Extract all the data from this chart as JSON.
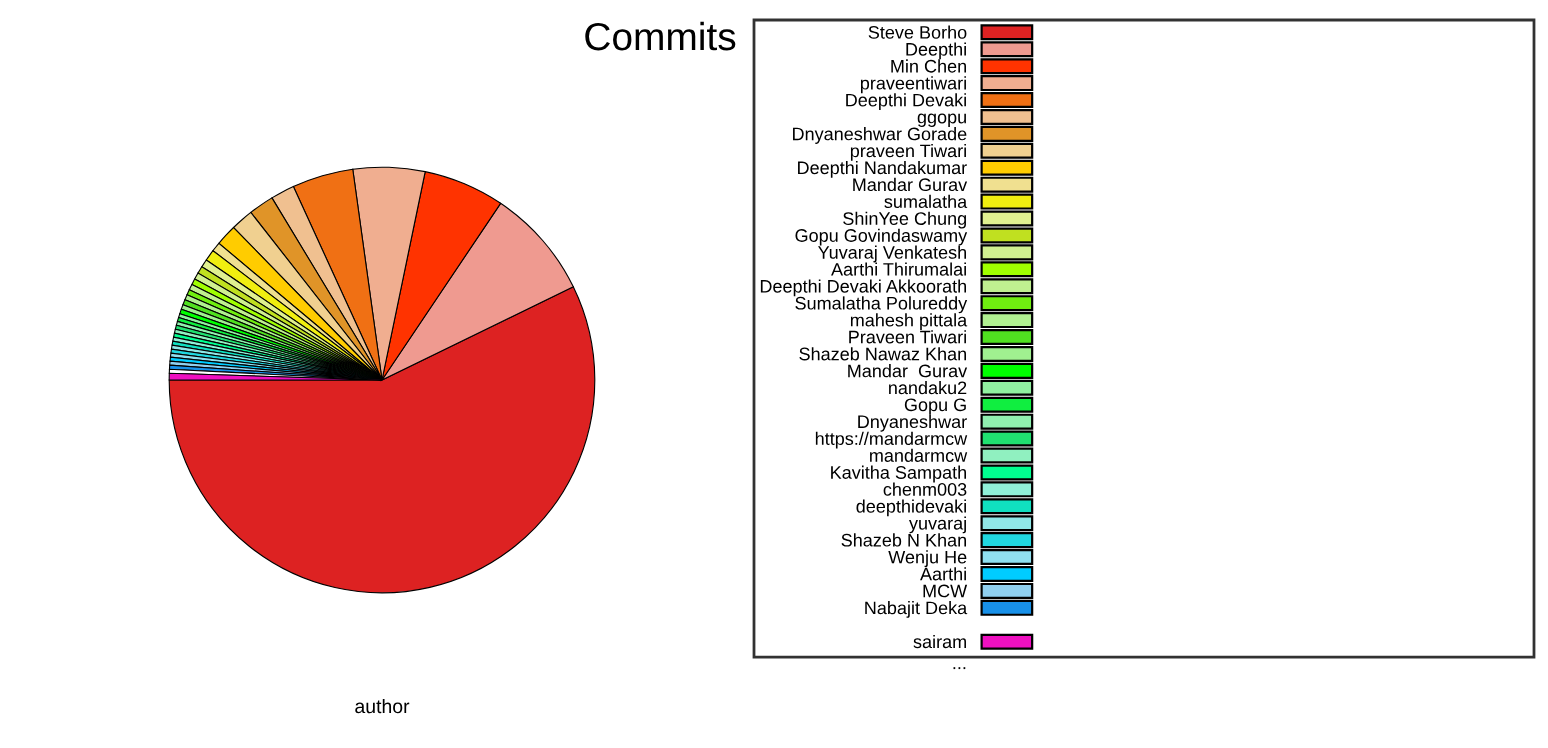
{
  "chart_data": {
    "type": "pie",
    "title": "Commits",
    "xlabel": "author",
    "legend": "right",
    "categories": [
      "Steve Borho",
      "Deepthi",
      "Min Chen",
      "praveentiwari",
      "Deepthi Devaki",
      "ggopu",
      "Dnyaneshwar Gorade",
      "praveen Tiwari",
      "Deepthi Nandakumar",
      "Mandar Gurav",
      "sumalatha",
      "ShinYee Chung",
      "Gopu Govindaswamy",
      "Yuvaraj Venkatesh",
      "Aarthi Thirumalai",
      "Deepthi Devaki Akkoorath",
      "Sumalatha Polureddy",
      "mahesh pittala",
      "Praveen Tiwari",
      "Shazeb Nawaz Khan",
      "Mandar  Gurav",
      "nandaku2",
      "Gopu G",
      "Dnyaneshwar",
      "https://mandarmcw",
      "mandarmcw",
      "Kavitha Sampath",
      "chenm003",
      "deepthidevaki",
      "yuvaraj",
      "Shazeb N Khan",
      "Wenju He",
      "Aarthi",
      "MCW",
      "Nabajit Deka",
      null,
      "sairam"
    ],
    "annotations": [
      "..."
    ],
    "values": [
      56.7,
      8.3,
      6.1,
      5.4,
      4.6,
      1.8,
      1.9,
      1.7,
      1.6,
      0.7,
      0.85,
      0.6,
      0.55,
      0.5,
      0.45,
      0.45,
      0.4,
      0.4,
      0.4,
      0.35,
      0.35,
      0.3,
      0.3,
      0.3,
      0.3,
      0.3,
      0.3,
      0.3,
      0.3,
      0.3,
      0.3,
      0.3,
      0.3,
      0.3,
      0.3,
      0.3,
      0.5
    ],
    "colors": [
      "#dd2222",
      "#ef9a90",
      "#ff3300",
      "#f0ae90",
      "#f07014",
      "#f0c090",
      "#e09428",
      "#f0d090",
      "#ffcc00",
      "#f0e090",
      "#f0ee10",
      "#e0f090",
      "#c0e020",
      "#d0f090",
      "#a0ff00",
      "#c0f090",
      "#70ee10",
      "#b0f090",
      "#50e020",
      "#a0f090",
      "#00ff00",
      "#90f0a0",
      "#10ee40",
      "#90f0b0",
      "#20e070",
      "#90f0c0",
      "#00ff90",
      "#90f0d8",
      "#10e0c0",
      "#90e8e8",
      "#20d8e0",
      "#90e0f0",
      "#00ccff",
      "#90d0f0",
      "#1890e8",
      null,
      "#ee10c0"
    ]
  }
}
